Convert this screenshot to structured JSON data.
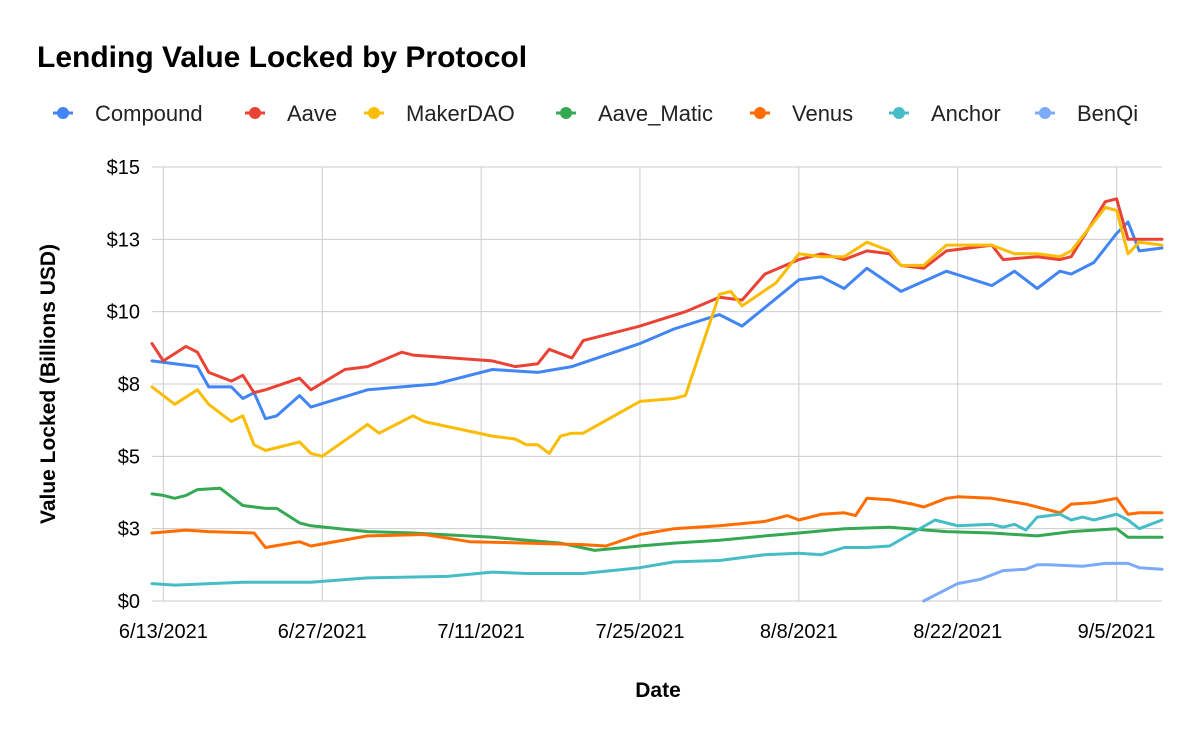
{
  "chart_data": {
    "type": "line",
    "title": "Lending Value Locked by Protocol",
    "xlabel": "Date",
    "ylabel": "Value Locked (Billions USD)",
    "ylim": [
      0,
      15
    ],
    "y_ticks": [
      {
        "value": 0,
        "label": "$0"
      },
      {
        "value": 2.5,
        "label": "$3"
      },
      {
        "value": 5,
        "label": "$5"
      },
      {
        "value": 7.5,
        "label": "$8"
      },
      {
        "value": 10,
        "label": "$10"
      },
      {
        "value": 12.5,
        "label": "$13"
      },
      {
        "value": 15,
        "label": "$15"
      }
    ],
    "x_ticks": [
      "6/13/2021",
      "6/27/2021",
      "7/11/2021",
      "7/25/2021",
      "8/8/2021",
      "8/22/2021",
      "9/5/2021"
    ],
    "x_range": [
      "6/12/2021",
      "9/9/2021"
    ],
    "grid": true,
    "legend_position": "top",
    "series": [
      {
        "name": "Compound",
        "color": "#4285F4",
        "x": [
          "6/12/2021",
          "6/16/2021",
          "6/17/2021",
          "6/19/2021",
          "6/20/2021",
          "6/21/2021",
          "6/22/2021",
          "6/23/2021",
          "6/25/2021",
          "6/26/2021",
          "7/1/2021",
          "7/7/2021",
          "7/12/2021",
          "7/16/2021",
          "7/19/2021",
          "7/22/2021",
          "7/25/2021",
          "7/28/2021",
          "8/1/2021",
          "8/3/2021",
          "8/8/2021",
          "8/10/2021",
          "8/12/2021",
          "8/14/2021",
          "8/17/2021",
          "8/21/2021",
          "8/25/2021",
          "8/27/2021",
          "8/29/2021",
          "8/31/2021",
          "9/1/2021",
          "9/3/2021",
          "9/5/2021",
          "9/6/2021",
          "9/7/2021",
          "9/9/2021"
        ],
        "values": [
          8.3,
          8.1,
          7.4,
          7.4,
          7.0,
          7.2,
          6.3,
          6.4,
          7.1,
          6.7,
          7.3,
          7.5,
          8.0,
          7.9,
          8.1,
          8.5,
          8.9,
          9.4,
          9.9,
          9.5,
          11.1,
          11.2,
          10.8,
          11.5,
          10.7,
          11.4,
          10.9,
          11.4,
          10.8,
          11.4,
          11.3,
          11.7,
          12.7,
          13.1,
          12.1,
          12.2
        ]
      },
      {
        "name": "Aave",
        "color": "#EA4335",
        "x": [
          "6/12/2021",
          "6/13/2021",
          "6/15/2021",
          "6/16/2021",
          "6/17/2021",
          "6/19/2021",
          "6/20/2021",
          "6/21/2021",
          "6/22/2021",
          "6/25/2021",
          "6/26/2021",
          "6/29/2021",
          "7/1/2021",
          "7/4/2021",
          "7/5/2021",
          "7/12/2021",
          "7/14/2021",
          "7/16/2021",
          "7/17/2021",
          "7/19/2021",
          "7/20/2021",
          "7/22/2021",
          "7/25/2021",
          "7/29/2021",
          "8/1/2021",
          "8/3/2021",
          "8/5/2021",
          "8/8/2021",
          "8/10/2021",
          "8/12/2021",
          "8/14/2021",
          "8/16/2021",
          "8/17/2021",
          "8/19/2021",
          "8/21/2021",
          "8/25/2021",
          "8/26/2021",
          "8/29/2021",
          "8/31/2021",
          "9/1/2021",
          "9/4/2021",
          "9/5/2021",
          "9/6/2021",
          "9/7/2021",
          "9/9/2021"
        ],
        "values": [
          8.9,
          8.3,
          8.8,
          8.6,
          7.9,
          7.6,
          7.8,
          7.2,
          7.3,
          7.7,
          7.3,
          8.0,
          8.1,
          8.6,
          8.5,
          8.3,
          8.1,
          8.2,
          8.7,
          8.4,
          9.0,
          9.2,
          9.5,
          10.0,
          10.5,
          10.4,
          11.3,
          11.8,
          12.0,
          11.8,
          12.1,
          12.0,
          11.6,
          11.5,
          12.1,
          12.3,
          11.8,
          11.9,
          11.8,
          11.9,
          13.8,
          13.9,
          12.5,
          12.5,
          12.5
        ]
      },
      {
        "name": "MakerDAO",
        "color": "#FBBC04",
        "x": [
          "6/12/2021",
          "6/14/2021",
          "6/16/2021",
          "6/17/2021",
          "6/19/2021",
          "6/20/2021",
          "6/21/2021",
          "6/22/2021",
          "6/25/2021",
          "6/26/2021",
          "6/27/2021",
          "7/1/2021",
          "7/2/2021",
          "7/5/2021",
          "7/6/2021",
          "7/12/2021",
          "7/14/2021",
          "7/15/2021",
          "7/16/2021",
          "7/17/2021",
          "7/18/2021",
          "7/19/2021",
          "7/20/2021",
          "7/25/2021",
          "7/28/2021",
          "7/29/2021",
          "8/1/2021",
          "8/2/2021",
          "8/3/2021",
          "8/6/2021",
          "8/8/2021",
          "8/10/2021",
          "8/12/2021",
          "8/14/2021",
          "8/16/2021",
          "8/17/2021",
          "8/19/2021",
          "8/21/2021",
          "8/25/2021",
          "8/27/2021",
          "8/29/2021",
          "8/31/2021",
          "9/1/2021",
          "9/4/2021",
          "9/5/2021",
          "9/6/2021",
          "9/7/2021",
          "9/9/2021"
        ],
        "values": [
          7.4,
          6.8,
          7.3,
          6.8,
          6.2,
          6.4,
          5.4,
          5.2,
          5.5,
          5.1,
          5.0,
          6.1,
          5.8,
          6.4,
          6.2,
          5.7,
          5.6,
          5.4,
          5.4,
          5.1,
          5.7,
          5.8,
          5.8,
          6.9,
          7.0,
          7.1,
          10.6,
          10.7,
          10.2,
          11.0,
          12.0,
          11.9,
          11.9,
          12.4,
          12.1,
          11.6,
          11.6,
          12.3,
          12.3,
          12.0,
          12.0,
          11.9,
          12.1,
          13.6,
          13.5,
          12.0,
          12.4,
          12.3
        ]
      },
      {
        "name": "Aave_Matic",
        "color": "#34A853",
        "x": [
          "6/12/2021",
          "6/13/2021",
          "6/14/2021",
          "6/15/2021",
          "6/16/2021",
          "6/18/2021",
          "6/19/2021",
          "6/20/2021",
          "6/22/2021",
          "6/23/2021",
          "6/25/2021",
          "6/26/2021",
          "7/1/2021",
          "7/5/2021",
          "7/12/2021",
          "7/18/2021",
          "7/21/2021",
          "7/25/2021",
          "7/28/2021",
          "8/1/2021",
          "8/5/2021",
          "8/8/2021",
          "8/12/2021",
          "8/16/2021",
          "8/21/2021",
          "8/25/2021",
          "8/29/2021",
          "9/1/2021",
          "9/5/2021",
          "9/6/2021",
          "9/9/2021"
        ],
        "values": [
          3.7,
          3.65,
          3.55,
          3.65,
          3.85,
          3.9,
          3.6,
          3.3,
          3.2,
          3.2,
          2.7,
          2.6,
          2.4,
          2.35,
          2.2,
          2.0,
          1.75,
          1.9,
          2.0,
          2.1,
          2.25,
          2.35,
          2.5,
          2.55,
          2.4,
          2.35,
          2.25,
          2.4,
          2.5,
          2.2,
          2.2
        ]
      },
      {
        "name": "Venus",
        "color": "#FF6D01",
        "x": [
          "6/12/2021",
          "6/15/2021",
          "6/17/2021",
          "6/21/2021",
          "6/22/2021",
          "6/25/2021",
          "6/26/2021",
          "7/1/2021",
          "7/6/2021",
          "7/10/2021",
          "7/15/2021",
          "7/20/2021",
          "7/22/2021",
          "7/25/2021",
          "7/28/2021",
          "8/1/2021",
          "8/5/2021",
          "8/7/2021",
          "8/8/2021",
          "8/10/2021",
          "8/12/2021",
          "8/13/2021",
          "8/14/2021",
          "8/16/2021",
          "8/18/2021",
          "8/19/2021",
          "8/21/2021",
          "8/22/2021",
          "8/25/2021",
          "8/28/2021",
          "8/31/2021",
          "9/1/2021",
          "9/3/2021",
          "9/5/2021",
          "9/6/2021",
          "9/7/2021",
          "9/9/2021"
        ],
        "values": [
          2.35,
          2.45,
          2.4,
          2.35,
          1.85,
          2.05,
          1.9,
          2.25,
          2.3,
          2.05,
          2.0,
          1.95,
          1.9,
          2.3,
          2.5,
          2.6,
          2.75,
          2.95,
          2.8,
          3.0,
          3.05,
          2.95,
          3.55,
          3.5,
          3.35,
          3.25,
          3.55,
          3.6,
          3.55,
          3.35,
          3.05,
          3.35,
          3.4,
          3.55,
          3.0,
          3.05,
          3.05
        ]
      },
      {
        "name": "Anchor",
        "color": "#46BDC6",
        "x": [
          "6/12/2021",
          "6/14/2021",
          "6/20/2021",
          "6/26/2021",
          "7/1/2021",
          "7/8/2021",
          "7/12/2021",
          "7/15/2021",
          "7/20/2021",
          "7/25/2021",
          "7/28/2021",
          "8/1/2021",
          "8/5/2021",
          "8/8/2021",
          "8/10/2021",
          "8/12/2021",
          "8/14/2021",
          "8/16/2021",
          "8/18/2021",
          "8/20/2021",
          "8/22/2021",
          "8/25/2021",
          "8/26/2021",
          "8/27/2021",
          "8/28/2021",
          "8/29/2021",
          "8/31/2021",
          "9/1/2021",
          "9/2/2021",
          "9/3/2021",
          "9/5/2021",
          "9/6/2021",
          "9/7/2021",
          "9/9/2021"
        ],
        "values": [
          0.6,
          0.55,
          0.65,
          0.65,
          0.8,
          0.85,
          1.0,
          0.95,
          0.95,
          1.15,
          1.35,
          1.4,
          1.6,
          1.65,
          1.6,
          1.85,
          1.85,
          1.9,
          2.35,
          2.8,
          2.6,
          2.65,
          2.55,
          2.65,
          2.45,
          2.9,
          3.0,
          2.8,
          2.9,
          2.8,
          3.0,
          2.8,
          2.5,
          2.8
        ]
      },
      {
        "name": "BenQi",
        "color": "#7BAAF7",
        "x": [
          "8/19/2021",
          "8/22/2021",
          "8/24/2021",
          "8/26/2021",
          "8/28/2021",
          "8/29/2021",
          "8/30/2021",
          "9/2/2021",
          "9/4/2021",
          "9/6/2021",
          "9/7/2021",
          "9/9/2021"
        ],
        "values": [
          0.0,
          0.6,
          0.75,
          1.05,
          1.1,
          1.25,
          1.25,
          1.2,
          1.3,
          1.3,
          1.15,
          1.1
        ]
      }
    ]
  }
}
